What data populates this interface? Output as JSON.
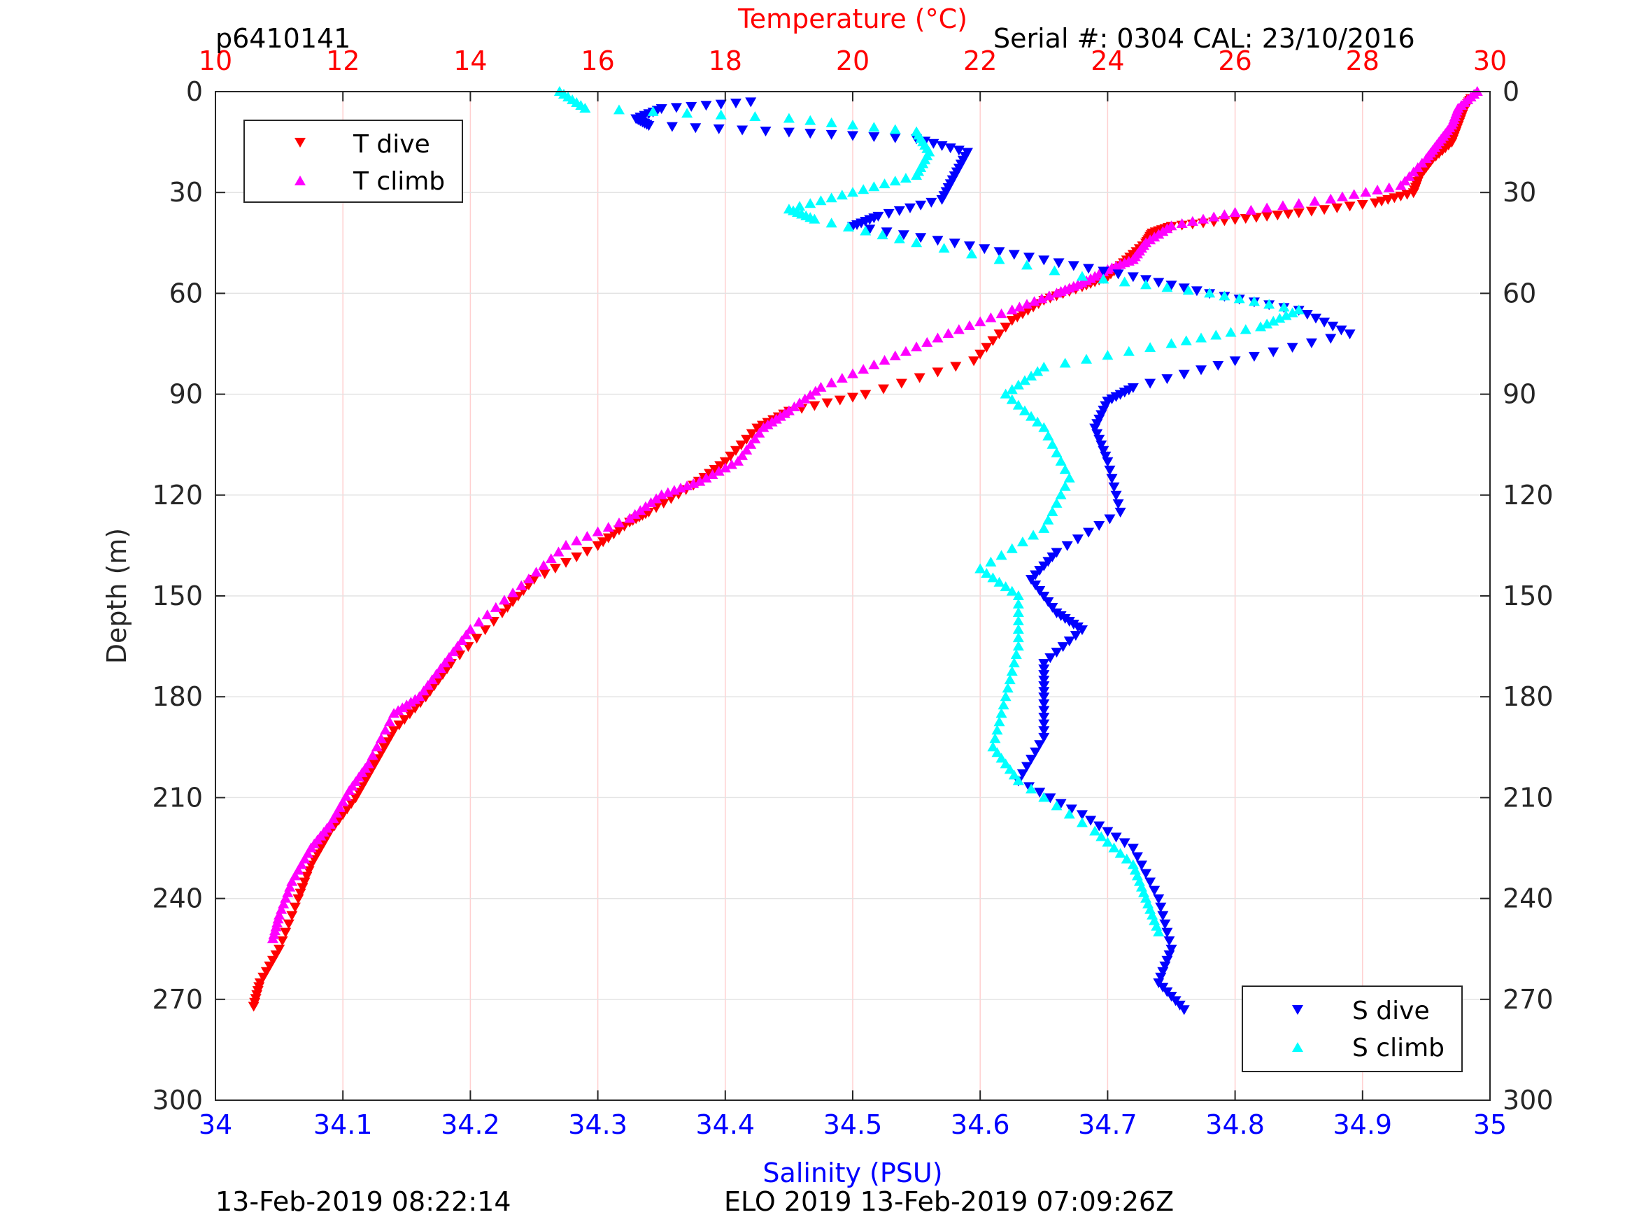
{
  "figure": {
    "title_left": "p6410141",
    "title_right": "Serial #: 0304  CAL: 23/10/2016",
    "footer_left": "13-Feb-2019 08:22:14",
    "footer_center": "ELO 2019 13-Feb-2019 07:09:26Z"
  },
  "chart_data": {
    "type": "scatter",
    "ylabel": "Depth (m)",
    "ylim": [
      0,
      300
    ],
    "y_reversed": true,
    "yticks": [
      0,
      30,
      60,
      90,
      120,
      150,
      180,
      210,
      240,
      270,
      300
    ],
    "x_top": {
      "label": "Temperature (°C)",
      "lim": [
        10,
        30
      ],
      "ticks": [
        10,
        12,
        14,
        16,
        18,
        20,
        22,
        24,
        26,
        28,
        30
      ],
      "color": "#ff0000"
    },
    "x_bottom": {
      "label": "Salinity (PSU)",
      "lim": [
        34,
        35
      ],
      "ticks": [
        "34",
        "34.1",
        "34.2",
        "34.3",
        "34.4",
        "34.5",
        "34.6",
        "34.7",
        "34.8",
        "34.9",
        "35"
      ],
      "color": "#0000ff"
    },
    "grid": true,
    "legends": [
      {
        "position": "top-left",
        "entries": [
          {
            "name": "T dive",
            "marker": "triangle-down",
            "color": "#ff0000"
          },
          {
            "name": "T climb",
            "marker": "triangle-up",
            "color": "#ff00ff"
          }
        ]
      },
      {
        "position": "bottom-right",
        "entries": [
          {
            "name": "S dive",
            "marker": "triangle-down",
            "color": "#0000ff"
          },
          {
            "name": "S climb",
            "marker": "triangle-up",
            "color": "#00ffff"
          }
        ]
      }
    ],
    "series": [
      {
        "name": "T dive",
        "axis": "temperature",
        "marker": "triangle-down",
        "color": "#ff0000",
        "points": [
          [
            29.7,
            2
          ],
          [
            29.6,
            5
          ],
          [
            29.5,
            10
          ],
          [
            29.4,
            15
          ],
          [
            29.1,
            20
          ],
          [
            28.9,
            25
          ],
          [
            28.8,
            30
          ],
          [
            28.2,
            33
          ],
          [
            27.0,
            36
          ],
          [
            26.0,
            38
          ],
          [
            25.0,
            40
          ],
          [
            24.7,
            42
          ],
          [
            24.6,
            45
          ],
          [
            24.3,
            50
          ],
          [
            24.0,
            55
          ],
          [
            23.6,
            58
          ],
          [
            23.0,
            62
          ],
          [
            22.5,
            68
          ],
          [
            21.9,
            80
          ],
          [
            20.2,
            90
          ],
          [
            19.0,
            95
          ],
          [
            18.5,
            100
          ],
          [
            18.0,
            110
          ],
          [
            17.5,
            117
          ],
          [
            16.8,
            125
          ],
          [
            16.5,
            128
          ],
          [
            16.0,
            135
          ],
          [
            15.0,
            145
          ],
          [
            14.5,
            155
          ],
          [
            13.7,
            170
          ],
          [
            13.3,
            180
          ],
          [
            12.8,
            190
          ],
          [
            12.5,
            200
          ],
          [
            12.2,
            210
          ],
          [
            11.8,
            220
          ],
          [
            11.5,
            230
          ],
          [
            11.3,
            240
          ],
          [
            11.0,
            255
          ],
          [
            10.7,
            265
          ],
          [
            10.6,
            272
          ]
        ]
      },
      {
        "name": "T climb",
        "axis": "temperature",
        "marker": "triangle-up",
        "color": "#ff00ff",
        "points": [
          [
            29.8,
            0
          ],
          [
            29.5,
            5
          ],
          [
            29.4,
            10
          ],
          [
            29.2,
            15
          ],
          [
            29.0,
            20
          ],
          [
            28.6,
            28
          ],
          [
            27.5,
            32
          ],
          [
            26.0,
            36
          ],
          [
            25.0,
            40
          ],
          [
            24.6,
            45
          ],
          [
            24.4,
            50
          ],
          [
            24.0,
            53
          ],
          [
            23.6,
            57
          ],
          [
            23.2,
            60
          ],
          [
            22.5,
            65
          ],
          [
            21.5,
            72
          ],
          [
            20.5,
            80
          ],
          [
            19.5,
            88
          ],
          [
            19.0,
            95
          ],
          [
            18.6,
            100
          ],
          [
            18.2,
            110
          ],
          [
            17.6,
            116
          ],
          [
            17.0,
            120
          ],
          [
            16.5,
            127
          ],
          [
            15.5,
            135
          ],
          [
            14.8,
            147
          ],
          [
            14.0,
            160
          ],
          [
            13.6,
            170
          ],
          [
            13.2,
            180
          ],
          [
            12.8,
            185
          ],
          [
            12.4,
            200
          ],
          [
            12.1,
            208
          ],
          [
            11.8,
            218
          ],
          [
            11.5,
            225
          ],
          [
            11.2,
            235
          ],
          [
            11.0,
            245
          ],
          [
            10.9,
            252
          ]
        ]
      },
      {
        "name": "S dive",
        "axis": "salinity",
        "marker": "triangle-down",
        "color": "#0000ff",
        "points": [
          [
            34.42,
            3
          ],
          [
            34.35,
            5
          ],
          [
            34.33,
            8
          ],
          [
            34.34,
            10
          ],
          [
            34.45,
            12
          ],
          [
            34.55,
            14
          ],
          [
            34.59,
            18
          ],
          [
            34.58,
            25
          ],
          [
            34.57,
            32
          ],
          [
            34.52,
            37
          ],
          [
            34.5,
            40
          ],
          [
            34.58,
            45
          ],
          [
            34.65,
            50
          ],
          [
            34.72,
            55
          ],
          [
            34.78,
            60
          ],
          [
            34.85,
            65
          ],
          [
            34.89,
            72
          ],
          [
            34.8,
            80
          ],
          [
            34.72,
            88
          ],
          [
            34.7,
            92
          ],
          [
            34.69,
            100
          ],
          [
            34.7,
            110
          ],
          [
            34.71,
            125
          ],
          [
            34.66,
            137
          ],
          [
            34.64,
            145
          ],
          [
            34.66,
            155
          ],
          [
            34.68,
            160
          ],
          [
            34.65,
            170
          ],
          [
            34.65,
            180
          ],
          [
            34.65,
            192
          ],
          [
            34.63,
            205
          ],
          [
            34.68,
            215
          ],
          [
            34.72,
            225
          ],
          [
            34.74,
            240
          ],
          [
            34.75,
            255
          ],
          [
            34.74,
            265
          ],
          [
            34.76,
            273
          ]
        ]
      },
      {
        "name": "S climb",
        "axis": "salinity",
        "marker": "triangle-up",
        "color": "#00ffff",
        "points": [
          [
            34.27,
            0
          ],
          [
            34.29,
            5
          ],
          [
            34.45,
            8
          ],
          [
            34.55,
            12
          ],
          [
            34.56,
            18
          ],
          [
            34.55,
            25
          ],
          [
            34.5,
            30
          ],
          [
            34.45,
            35
          ],
          [
            34.47,
            38
          ],
          [
            34.55,
            45
          ],
          [
            34.68,
            55
          ],
          [
            34.78,
            60
          ],
          [
            34.85,
            65
          ],
          [
            34.82,
            70
          ],
          [
            34.75,
            75
          ],
          [
            34.65,
            82
          ],
          [
            34.62,
            90
          ],
          [
            34.65,
            100
          ],
          [
            34.67,
            115
          ],
          [
            34.65,
            130
          ],
          [
            34.6,
            142
          ],
          [
            34.63,
            150
          ],
          [
            34.63,
            165
          ],
          [
            34.62,
            180
          ],
          [
            34.61,
            195
          ],
          [
            34.63,
            205
          ],
          [
            34.69,
            220
          ],
          [
            34.72,
            230
          ],
          [
            34.73,
            240
          ],
          [
            34.74,
            250
          ]
        ]
      }
    ]
  }
}
